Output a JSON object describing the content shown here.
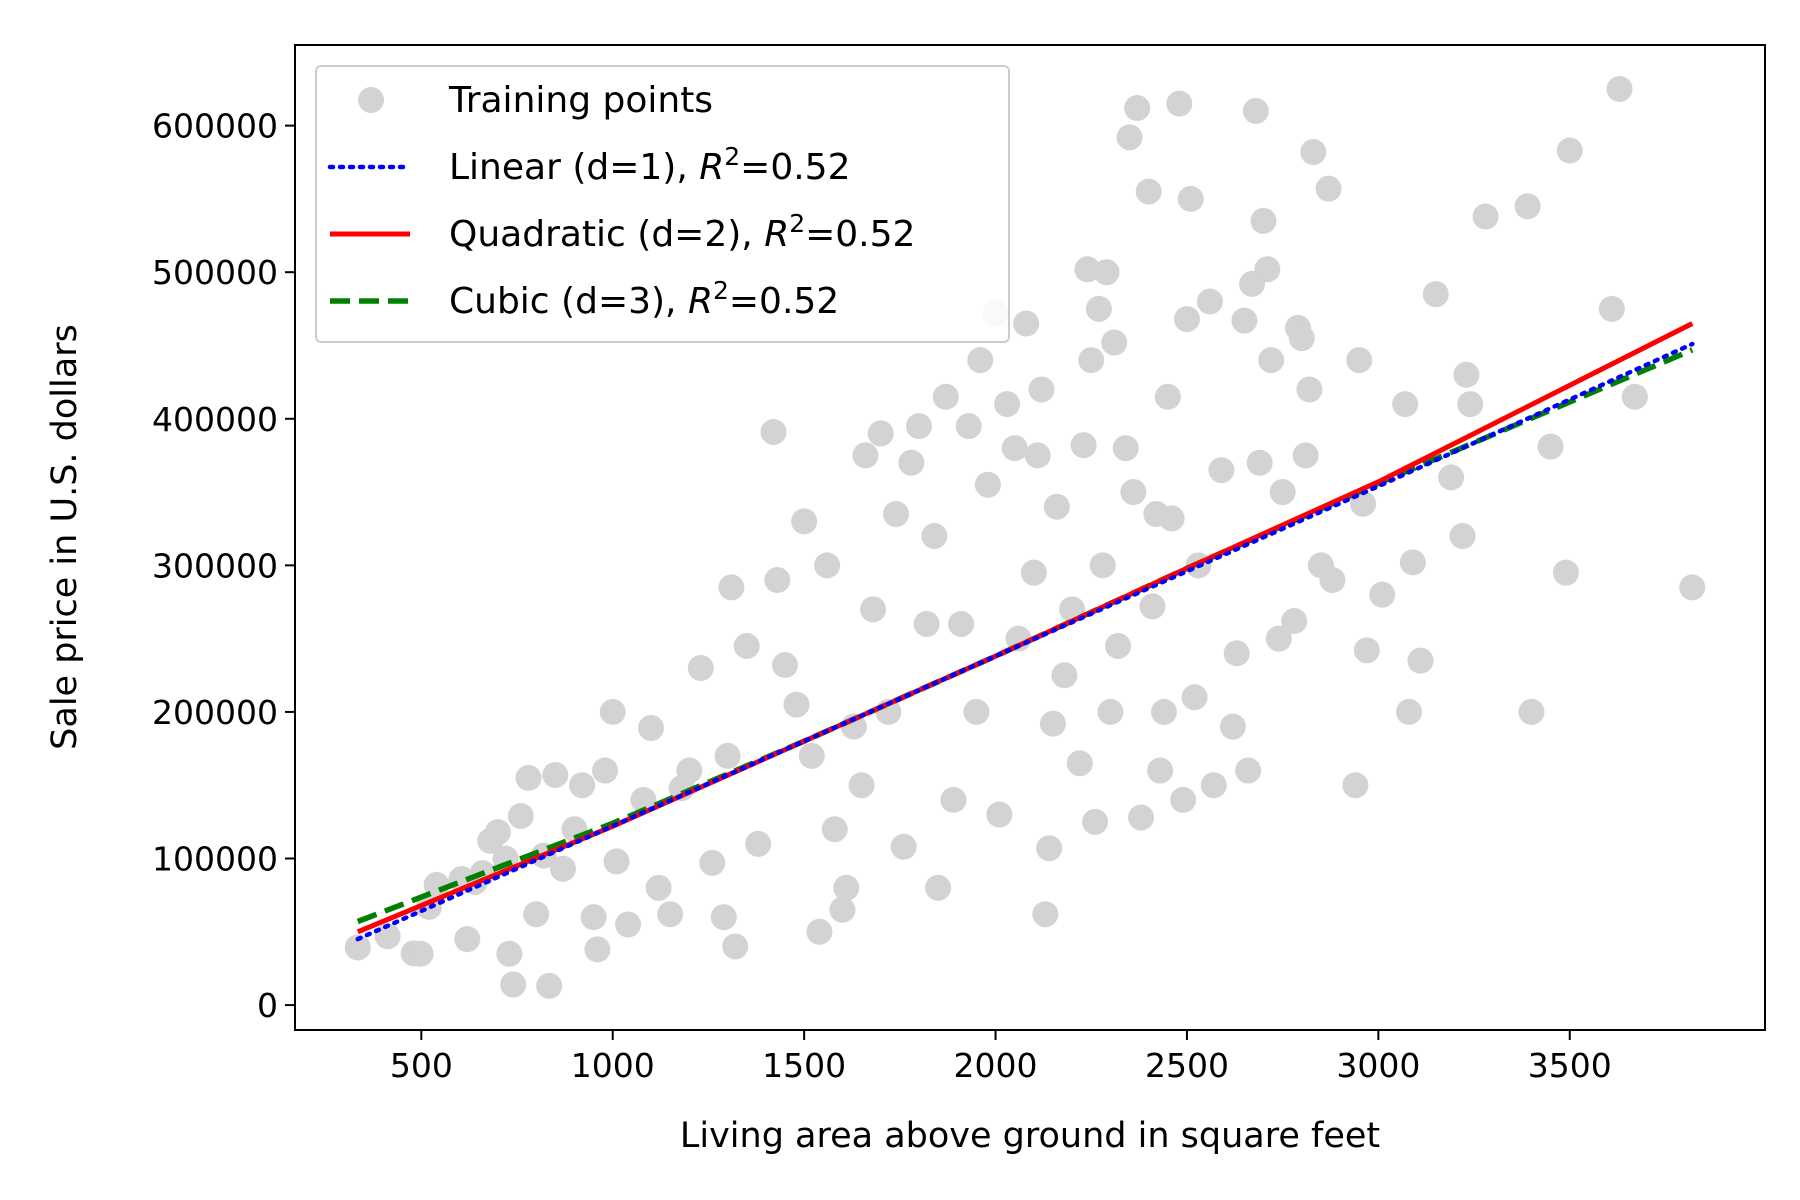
{
  "chart_data": {
    "type": "scatter",
    "xlabel": "Living area above ground in square feet",
    "ylabel": "Sale price in U.S. dollars",
    "xlim": [
      170,
      4010
    ],
    "ylim": [
      -17000,
      655000
    ],
    "xticks": [
      500,
      1000,
      1500,
      2000,
      2500,
      3000,
      3500
    ],
    "yticks": [
      0,
      100000,
      200000,
      300000,
      400000,
      500000,
      600000
    ],
    "legend": {
      "position": "upper-left",
      "entries": [
        {
          "key": "training",
          "label": "Training points"
        },
        {
          "key": "linear",
          "pre": "Linear (d=1), ",
          "r": "R",
          "sup": "2",
          "post": "=0.52"
        },
        {
          "key": "quadratic",
          "pre": "Quadratic (d=2), ",
          "r": "R",
          "sup": "2",
          "post": "=0.52"
        },
        {
          "key": "cubic",
          "pre": "Cubic (d=3), ",
          "r": "R",
          "sup": "2",
          "post": "=0.52"
        }
      ]
    },
    "colors": {
      "training": "#d3d3d3",
      "linear": "#0000ff",
      "quadratic": "#ff0000",
      "cubic": "#008000"
    },
    "series": [
      {
        "name": "Training points",
        "type": "scatter",
        "points": [
          [
            334,
            39300
          ],
          [
            412,
            47000
          ],
          [
            480,
            35311
          ],
          [
            498,
            35000
          ],
          [
            520,
            67000
          ],
          [
            540,
            82000
          ],
          [
            605,
            86000
          ],
          [
            620,
            45000
          ],
          [
            640,
            84000
          ],
          [
            660,
            90000
          ],
          [
            680,
            112000
          ],
          [
            700,
            118000
          ],
          [
            720,
            100000
          ],
          [
            730,
            35000
          ],
          [
            740,
            14000
          ],
          [
            760,
            129000
          ],
          [
            780,
            155000
          ],
          [
            800,
            62000
          ],
          [
            820,
            102000
          ],
          [
            834,
            13100
          ],
          [
            850,
            157000
          ],
          [
            870,
            93000
          ],
          [
            900,
            120000
          ],
          [
            920,
            150000
          ],
          [
            950,
            60000
          ],
          [
            960,
            38000
          ],
          [
            980,
            160000
          ],
          [
            1000,
            200000
          ],
          [
            1010,
            98000
          ],
          [
            1040,
            55000
          ],
          [
            1080,
            140000
          ],
          [
            1100,
            189000
          ],
          [
            1120,
            80000
          ],
          [
            1150,
            62000
          ],
          [
            1180,
            148000
          ],
          [
            1200,
            160000
          ],
          [
            1230,
            230000
          ],
          [
            1260,
            97000
          ],
          [
            1290,
            60000
          ],
          [
            1300,
            170000
          ],
          [
            1310,
            285000
          ],
          [
            1320,
            40000
          ],
          [
            1350,
            245000
          ],
          [
            1380,
            110000
          ],
          [
            1420,
            391000
          ],
          [
            1430,
            290000
          ],
          [
            1450,
            232000
          ],
          [
            1480,
            205000
          ],
          [
            1500,
            330000
          ],
          [
            1520,
            170000
          ],
          [
            1540,
            50000
          ],
          [
            1560,
            300000
          ],
          [
            1580,
            120000
          ],
          [
            1600,
            65000
          ],
          [
            1610,
            80000
          ],
          [
            1630,
            190000
          ],
          [
            1650,
            150000
          ],
          [
            1660,
            375000
          ],
          [
            1680,
            270000
          ],
          [
            1700,
            390000
          ],
          [
            1720,
            200000
          ],
          [
            1740,
            335000
          ],
          [
            1760,
            108000
          ],
          [
            1780,
            370000
          ],
          [
            1800,
            395000
          ],
          [
            1820,
            260000
          ],
          [
            1840,
            320000
          ],
          [
            1850,
            80000
          ],
          [
            1870,
            415000
          ],
          [
            1890,
            140000
          ],
          [
            1910,
            260000
          ],
          [
            1930,
            395000
          ],
          [
            1950,
            200000
          ],
          [
            1960,
            440000
          ],
          [
            1980,
            355000
          ],
          [
            2000,
            472000
          ],
          [
            2010,
            130000
          ],
          [
            2030,
            410000
          ],
          [
            2050,
            380000
          ],
          [
            2060,
            250000
          ],
          [
            2080,
            465000
          ],
          [
            2100,
            295000
          ],
          [
            2110,
            375000
          ],
          [
            2120,
            420000
          ],
          [
            2130,
            62000
          ],
          [
            2140,
            107000
          ],
          [
            2150,
            192000
          ],
          [
            2160,
            340000
          ],
          [
            2180,
            225000
          ],
          [
            2200,
            270000
          ],
          [
            2220,
            165000
          ],
          [
            2230,
            382000
          ],
          [
            2240,
            502000
          ],
          [
            2250,
            440000
          ],
          [
            2260,
            125000
          ],
          [
            2270,
            475000
          ],
          [
            2280,
            300000
          ],
          [
            2290,
            500000
          ],
          [
            2300,
            200000
          ],
          [
            2310,
            452000
          ],
          [
            2320,
            245000
          ],
          [
            2340,
            380000
          ],
          [
            2350,
            592000
          ],
          [
            2360,
            350000
          ],
          [
            2370,
            612000
          ],
          [
            2380,
            128000
          ],
          [
            2400,
            555000
          ],
          [
            2410,
            272000
          ],
          [
            2420,
            335000
          ],
          [
            2430,
            160000
          ],
          [
            2440,
            200000
          ],
          [
            2450,
            415000
          ],
          [
            2460,
            332000
          ],
          [
            2480,
            615000
          ],
          [
            2490,
            140000
          ],
          [
            2500,
            468000
          ],
          [
            2510,
            550000
          ],
          [
            2520,
            210000
          ],
          [
            2530,
            300000
          ],
          [
            2560,
            480000
          ],
          [
            2570,
            150000
          ],
          [
            2590,
            365000
          ],
          [
            2620,
            190000
          ],
          [
            2630,
            240000
          ],
          [
            2650,
            467000
          ],
          [
            2660,
            160000
          ],
          [
            2670,
            492000
          ],
          [
            2680,
            610000
          ],
          [
            2690,
            370000
          ],
          [
            2700,
            535000
          ],
          [
            2710,
            502000
          ],
          [
            2720,
            440000
          ],
          [
            2740,
            250000
          ],
          [
            2750,
            350000
          ],
          [
            2780,
            262000
          ],
          [
            2790,
            462000
          ],
          [
            2800,
            455000
          ],
          [
            2810,
            375000
          ],
          [
            2820,
            420000
          ],
          [
            2830,
            582000
          ],
          [
            2850,
            300000
          ],
          [
            2870,
            557000
          ],
          [
            2880,
            290000
          ],
          [
            2940,
            150000
          ],
          [
            2950,
            440000
          ],
          [
            2960,
            342000
          ],
          [
            2970,
            242000
          ],
          [
            3010,
            280000
          ],
          [
            3070,
            410000
          ],
          [
            3080,
            200000
          ],
          [
            3090,
            302000
          ],
          [
            3110,
            235000
          ],
          [
            3150,
            485000
          ],
          [
            3190,
            360000
          ],
          [
            3220,
            320000
          ],
          [
            3230,
            430000
          ],
          [
            3240,
            410000
          ],
          [
            3280,
            538000
          ],
          [
            3390,
            545000
          ],
          [
            3400,
            200000
          ],
          [
            3450,
            381000
          ],
          [
            3490,
            295000
          ],
          [
            3500,
            583000
          ],
          [
            3610,
            475000
          ],
          [
            3630,
            625000
          ],
          [
            3670,
            415000
          ],
          [
            3820,
            285000
          ]
        ]
      },
      {
        "name": "Linear (d=1)",
        "type": "line",
        "x": [
          334,
          1500,
          2000,
          2500,
          3000,
          3820
        ],
        "y": [
          45000,
          180000,
          238000,
          296000,
          354000,
          451000
        ]
      },
      {
        "name": "Quadratic (d=2)",
        "type": "line",
        "x": [
          334,
          1000,
          1500,
          2000,
          2500,
          3000,
          3820
        ],
        "y": [
          50000,
          122000,
          180000,
          238000,
          298000,
          357000,
          465000
        ]
      },
      {
        "name": "Cubic (d=3)",
        "type": "line",
        "x": [
          334,
          1000,
          1500,
          2000,
          2500,
          3000,
          3820
        ],
        "y": [
          57000,
          124000,
          180000,
          238000,
          298000,
          356000,
          447000
        ]
      }
    ]
  }
}
